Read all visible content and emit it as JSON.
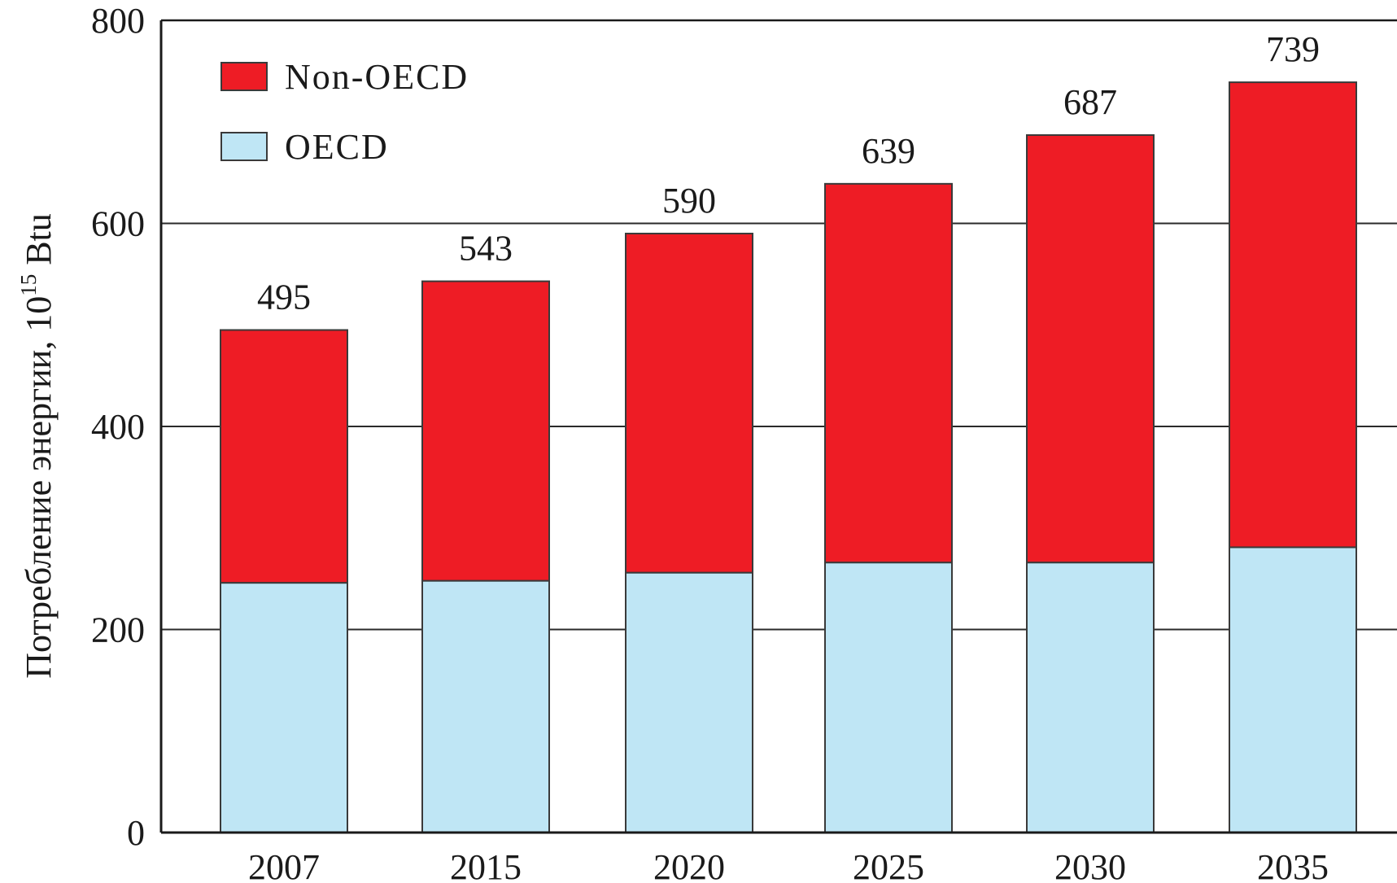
{
  "chart_data": {
    "type": "bar",
    "stacked": true,
    "categories": [
      "2007",
      "2015",
      "2020",
      "2025",
      "2030",
      "2035"
    ],
    "series": [
      {
        "name": "OECD",
        "values": [
          246,
          248,
          256,
          266,
          266,
          281
        ]
      },
      {
        "name": "Non-OECD",
        "values": [
          249,
          295,
          334,
          373,
          421,
          458
        ]
      }
    ],
    "totals": [
      495,
      543,
      590,
      639,
      687,
      739
    ],
    "total_labels": [
      "495",
      "543",
      "590",
      "639",
      "687",
      "739"
    ],
    "ylabel_main": "Потребление энергии,  10",
    "ylabel_sup": "15",
    "ylabel_unit": " Btu",
    "ylim": [
      0,
      800
    ],
    "yticks": [
      0,
      200,
      400,
      600,
      800
    ],
    "ytick_labels": [
      "0",
      "200",
      "400",
      "600",
      "800"
    ],
    "grid": true,
    "legend": {
      "placement": "top-left",
      "entries": [
        {
          "label": "Non-OECD",
          "series": "Non-OECD"
        },
        {
          "label": "OECD",
          "series": "OECD"
        }
      ]
    },
    "colors": {
      "Non-OECD": "#ee1c25",
      "OECD": "#bfe6f5"
    }
  }
}
